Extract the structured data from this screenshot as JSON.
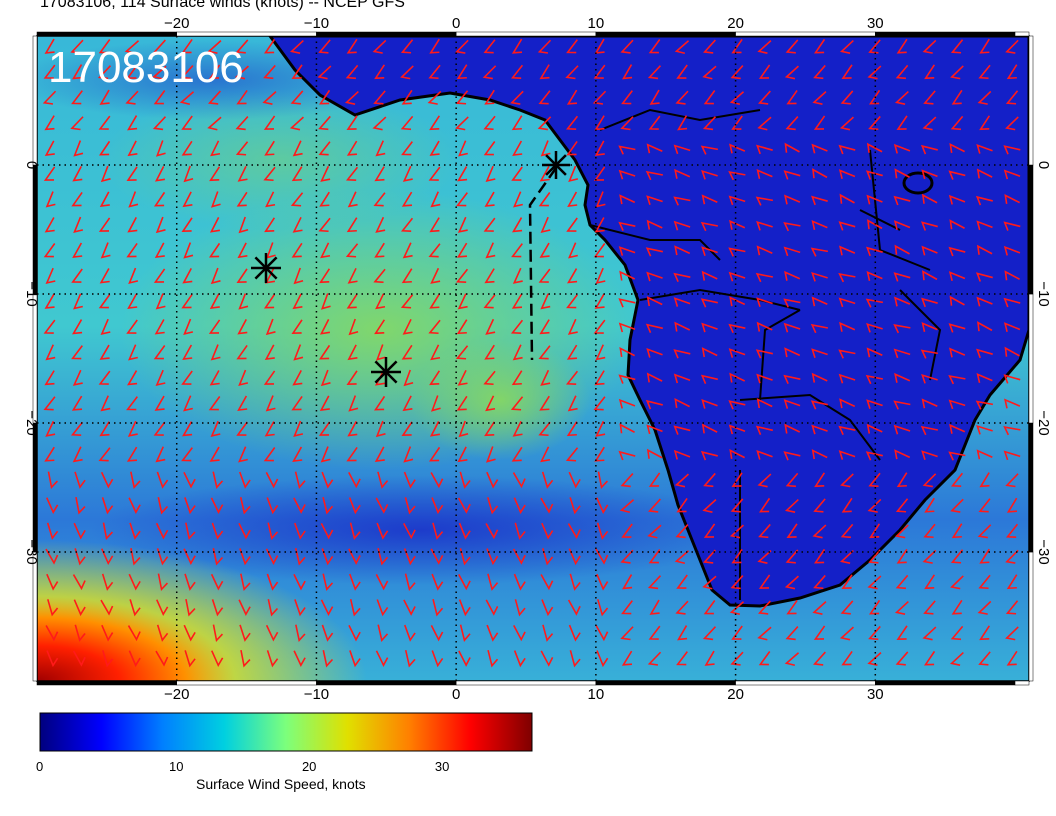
{
  "title": "17083106, 114 Surface winds (knots) -- NCEP GFS",
  "stamp": "17083106",
  "map": {
    "lon_range": [
      -30,
      41
    ],
    "lat_range": [
      -40,
      10
    ],
    "lon_ticks": [
      "−20",
      "−10",
      "0",
      "10",
      "20",
      "30"
    ],
    "lat_ticks": [
      "0",
      "−10",
      "−20",
      "−30"
    ],
    "barb_color": "#ff1a1a",
    "markers": [
      "asterisk",
      "asterisk",
      "asterisk"
    ],
    "path_style": "dashed"
  },
  "colorbar": {
    "title": "Surface Wind Speed, knots",
    "ticks": [
      "0",
      "10",
      "20",
      "30"
    ],
    "range": [
      0,
      37
    ],
    "colors": [
      "#00007f",
      "#0000ff",
      "#0080ff",
      "#00d0e0",
      "#7cff7c",
      "#e0e000",
      "#ff8000",
      "#ff0000",
      "#7f0000"
    ]
  }
}
